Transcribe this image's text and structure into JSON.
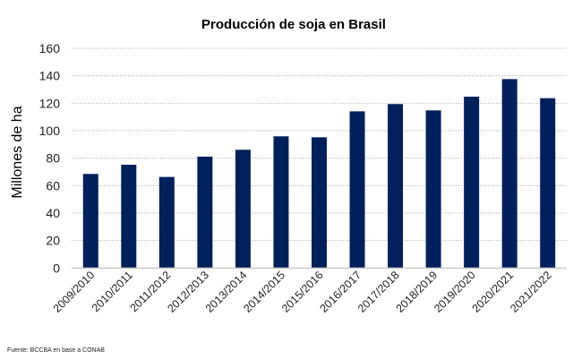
{
  "chart_data": {
    "type": "bar",
    "title": "Producción de soja en Brasil",
    "xlabel": "",
    "ylabel": "Millones de ha",
    "ylim": [
      0,
      160
    ],
    "yticks": [
      0,
      20,
      40,
      60,
      80,
      100,
      120,
      140,
      160
    ],
    "grid": true,
    "legend": "none",
    "categories": [
      "2009/2010",
      "2010/2011",
      "2011/2012",
      "2012/2013",
      "2013/2014",
      "2014/2015",
      "2015/2016",
      "2016/2017",
      "2017/2018",
      "2018/2019",
      "2019/2020",
      "2020/2021",
      "2021/2022"
    ],
    "values": [
      68.5,
      75.2,
      66.3,
      81.1,
      86.1,
      95.9,
      95.2,
      114.1,
      119.4,
      114.8,
      124.8,
      137.6,
      123.7
    ],
    "bar_color": "#00205B",
    "source_note": "Fuente: BCCBA en base a CONAB"
  }
}
